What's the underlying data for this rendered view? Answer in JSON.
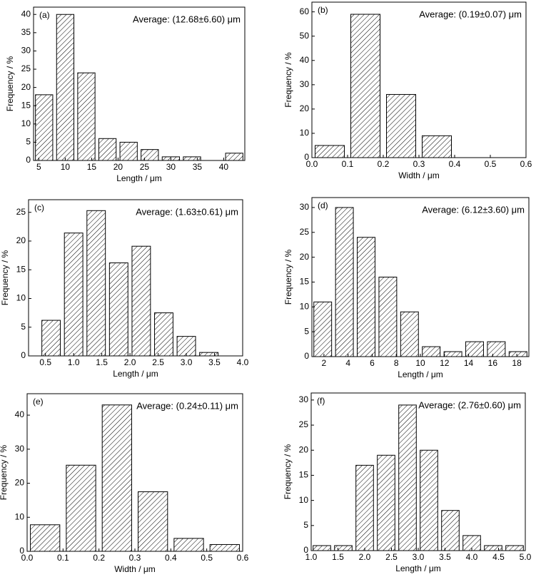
{
  "chart_data": [
    {
      "type": "histogram",
      "title": "(a)",
      "annotation": "Average: (12.68±6.60) μm",
      "xlabel": "Length / μm",
      "ylabel": "Frequency / %",
      "bins": [
        4,
        8,
        12,
        16,
        20,
        24,
        28,
        32,
        36,
        40,
        44
      ],
      "values": [
        18,
        40,
        24,
        6,
        5,
        3,
        1,
        1,
        0,
        2
      ],
      "xlim": [
        4,
        44
      ],
      "xticks": [
        5,
        10,
        15,
        20,
        25,
        30,
        35,
        40
      ],
      "ylim": [
        0,
        42
      ],
      "yticks": [
        0,
        5,
        10,
        15,
        20,
        25,
        30,
        35,
        40
      ]
    },
    {
      "type": "histogram",
      "title": "(b)",
      "annotation": "Average: (0.19±0.07) μm",
      "xlabel": "Width / μm",
      "ylabel": "Frequency / %",
      "bins": [
        0,
        0.1,
        0.2,
        0.3,
        0.4
      ],
      "values": [
        5,
        59,
        26,
        9
      ],
      "xlim": [
        0,
        0.6
      ],
      "xticks": [
        {
          "value": 0,
          "label": "0.0"
        },
        0.1,
        0.2,
        0.3,
        0.4,
        0.5,
        0.6
      ],
      "ylim": [
        0,
        64
      ],
      "yticks": [
        0,
        10,
        20,
        30,
        40,
        50,
        60
      ]
    },
    {
      "type": "histogram",
      "title": "(c)",
      "annotation": "Average: (1.63±0.61) μm",
      "xlabel": "Length / μm",
      "ylabel": "Frequency / %",
      "bins": [
        0.4,
        0.8,
        1.2,
        1.6,
        2.0,
        2.4,
        2.8,
        3.2,
        3.6
      ],
      "values": [
        6.2,
        21.4,
        25.3,
        16.2,
        19.1,
        7.5,
        3.4,
        0.6
      ],
      "xlim": [
        0.2,
        4.0
      ],
      "xticks": [
        0.5,
        {
          "value": 1,
          "label": "1.0"
        },
        1.5,
        {
          "value": 2,
          "label": "2.0"
        },
        2.5,
        {
          "value": 3,
          "label": "3.0"
        },
        3.5,
        {
          "value": 4,
          "label": "4.0"
        }
      ],
      "ylim": [
        0,
        27.2
      ],
      "yticks": [
        0,
        5,
        10,
        15,
        20,
        25
      ]
    },
    {
      "type": "histogram",
      "title": "(d)",
      "annotation": "Average: (6.12±3.60) μm",
      "xlabel": "Length / μm",
      "ylabel": "Frequency / %",
      "bins": [
        1,
        2.8,
        4.6,
        6.4,
        8.2,
        10,
        11.8,
        13.6,
        15.4,
        17.2,
        19
      ],
      "values": [
        11,
        30,
        24,
        16,
        9,
        2,
        1,
        3,
        3,
        1
      ],
      "xlim": [
        1,
        19
      ],
      "xticks": [
        2,
        4,
        6,
        8,
        10,
        12,
        14,
        16,
        18
      ],
      "ylim": [
        0,
        32
      ],
      "yticks": [
        0,
        5,
        10,
        15,
        20,
        25,
        30
      ]
    },
    {
      "type": "histogram",
      "title": "(e)",
      "annotation": "Average: (0.24±0.11) μm",
      "xlabel": "Width / μm",
      "ylabel": "Frequency / %",
      "bins": [
        0,
        0.1,
        0.2,
        0.3,
        0.4,
        0.5,
        0.6
      ],
      "values": [
        7.8,
        25.3,
        43,
        17.5,
        3.8,
        2
      ],
      "xlim": [
        0,
        0.6
      ],
      "xticks": [
        {
          "value": 0,
          "label": "0.0"
        },
        0.1,
        0.2,
        0.3,
        0.4,
        0.5,
        0.6
      ],
      "ylim": [
        0,
        46.3
      ],
      "yticks": [
        0,
        10,
        20,
        30,
        40
      ]
    },
    {
      "type": "histogram",
      "title": "(f)",
      "annotation": "Average: (2.76±0.60) μm",
      "xlabel": "Length / μm",
      "ylabel": "Frequency / %",
      "bins": [
        1.0,
        1.4,
        1.8,
        2.2,
        2.6,
        3.0,
        3.4,
        3.8,
        4.2,
        4.6,
        5.0
      ],
      "values": [
        1,
        1,
        17,
        19,
        29,
        20,
        8,
        3,
        1,
        1
      ],
      "xlim": [
        1,
        5
      ],
      "xticks": [
        {
          "value": 1,
          "label": "1.0"
        },
        1.5,
        {
          "value": 2,
          "label": "2.0"
        },
        2.5,
        {
          "value": 3,
          "label": "3.0"
        },
        3.5,
        {
          "value": 4,
          "label": "4.0"
        },
        4.5,
        {
          "value": 5,
          "label": "5.0"
        }
      ],
      "ylim": [
        0,
        31.4
      ],
      "yticks": [
        0,
        5,
        10,
        15,
        20,
        25,
        30
      ]
    }
  ]
}
